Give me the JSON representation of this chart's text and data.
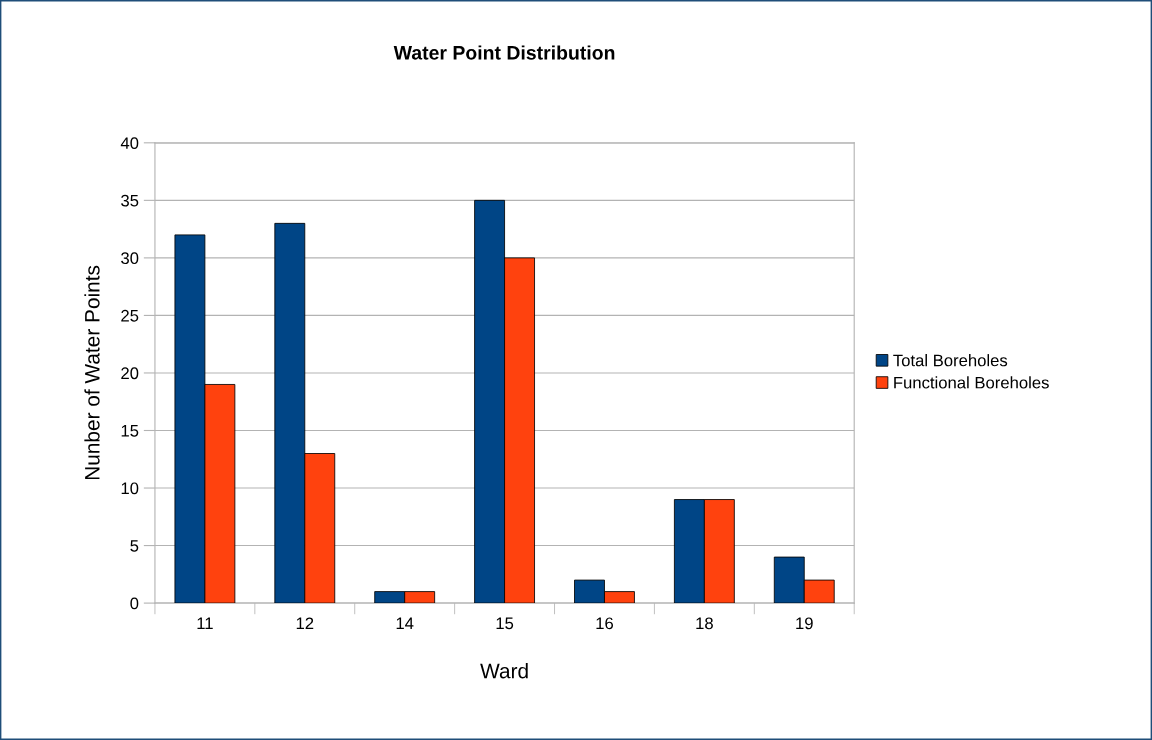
{
  "chart_data": {
    "type": "bar",
    "title": "Water Point Distribution",
    "xlabel": "Ward",
    "ylabel": "Nunber of Water Points",
    "categories": [
      "11",
      "12",
      "14",
      "15",
      "16",
      "18",
      "19"
    ],
    "series": [
      {
        "name": "Total Boreholes",
        "color": "#004586",
        "values": [
          32,
          33,
          1,
          35,
          2,
          9,
          4
        ]
      },
      {
        "name": "Functional Boreholes",
        "color": "#ff420e",
        "values": [
          19,
          13,
          1,
          30,
          1,
          9,
          2
        ]
      }
    ],
    "ylim": [
      0,
      40
    ],
    "yticks": [
      0,
      5,
      10,
      15,
      20,
      25,
      30,
      35,
      40
    ],
    "grid": "y",
    "legend": "right"
  }
}
